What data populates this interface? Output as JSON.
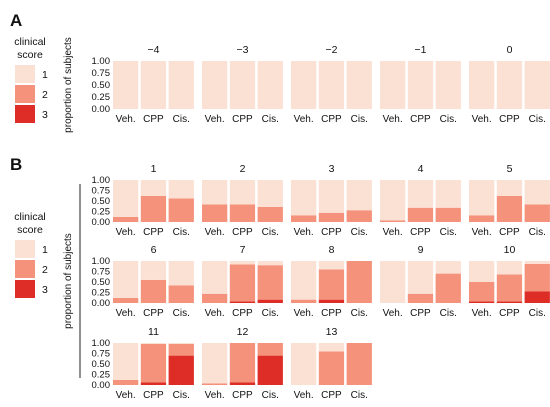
{
  "panels": [
    {
      "letter": "A"
    },
    {
      "letter": "B"
    }
  ],
  "legend": {
    "title_line1": "clinical",
    "title_line2": "score",
    "items": [
      {
        "label": "1",
        "color": "#fbe0d4"
      },
      {
        "label": "2",
        "color": "#f4927c"
      },
      {
        "label": "3",
        "color": "#de2d26"
      }
    ]
  },
  "ylabel": "proportion of subjects",
  "chart_data": [
    {
      "type": "bar",
      "stacked": true,
      "panel": "A",
      "ylabel": "proportion of subjects",
      "ylim": [
        0,
        1
      ],
      "yticks": [
        "0.00",
        "0.25",
        "0.50",
        "0.75",
        "1.00"
      ],
      "categories": [
        "Veh.",
        "CPP",
        "Cis."
      ],
      "score_colors": {
        "1": "#fbe0d4",
        "2": "#f4927c",
        "3": "#de2d26"
      },
      "facets": [
        {
          "title": "−4",
          "score2": [
            0,
            0,
            0
          ],
          "score3": [
            0,
            0,
            0
          ]
        },
        {
          "title": "−3",
          "score2": [
            0,
            0,
            0
          ],
          "score3": [
            0,
            0,
            0
          ]
        },
        {
          "title": "−2",
          "score2": [
            0,
            0,
            0
          ],
          "score3": [
            0,
            0,
            0
          ]
        },
        {
          "title": "−1",
          "score2": [
            0,
            0,
            0
          ],
          "score3": [
            0,
            0,
            0
          ]
        },
        {
          "title": "0",
          "score2": [
            0,
            0,
            0
          ],
          "score3": [
            0,
            0,
            0
          ]
        }
      ]
    },
    {
      "type": "bar",
      "stacked": true,
      "panel": "B",
      "ylabel": "proportion of subjects",
      "ylim": [
        0,
        1
      ],
      "yticks": [
        "0.00",
        "0.25",
        "0.50",
        "0.75",
        "1.00"
      ],
      "categories": [
        "Veh.",
        "CPP",
        "Cis."
      ],
      "score_colors": {
        "1": "#fbe0d4",
        "2": "#f4927c",
        "3": "#de2d26"
      },
      "facets": [
        {
          "title": "1",
          "score2": [
            0.12,
            0.62,
            0.56
          ],
          "score3": [
            0,
            0,
            0
          ]
        },
        {
          "title": "2",
          "score2": [
            0.42,
            0.42,
            0.36
          ],
          "score3": [
            0,
            0,
            0
          ]
        },
        {
          "title": "3",
          "score2": [
            0.16,
            0.22,
            0.28
          ],
          "score3": [
            0,
            0,
            0
          ]
        },
        {
          "title": "4",
          "score2": [
            0.04,
            0.34,
            0.34
          ],
          "score3": [
            0,
            0,
            0
          ]
        },
        {
          "title": "5",
          "score2": [
            0.16,
            0.62,
            0.42
          ],
          "score3": [
            0,
            0,
            0
          ]
        },
        {
          "title": "6",
          "score2": [
            0.12,
            0.55,
            0.42
          ],
          "score3": [
            0,
            0,
            0
          ]
        },
        {
          "title": "7",
          "score2": [
            0.22,
            0.88,
            0.82
          ],
          "score3": [
            0,
            0.04,
            0.08
          ]
        },
        {
          "title": "8",
          "score2": [
            0.08,
            0.72,
            1.0
          ],
          "score3": [
            0,
            0.08,
            0
          ]
        },
        {
          "title": "9",
          "score2": [
            0,
            0.22,
            0.7
          ],
          "score3": [
            0,
            0,
            0
          ]
        },
        {
          "title": "10",
          "score2": [
            0.46,
            0.64,
            0.65
          ],
          "score3": [
            0.04,
            0.04,
            0.28
          ]
        },
        {
          "title": "11",
          "score2": [
            0.12,
            0.92,
            0.28
          ],
          "score3": [
            0,
            0.06,
            0.7
          ]
        },
        {
          "title": "12",
          "score2": [
            0.04,
            0.94,
            0.3
          ],
          "score3": [
            0,
            0.06,
            0.7
          ]
        },
        {
          "title": "13",
          "score2": [
            0,
            0.8,
            1.0
          ],
          "score3": [
            0,
            0,
            0
          ]
        }
      ]
    }
  ]
}
